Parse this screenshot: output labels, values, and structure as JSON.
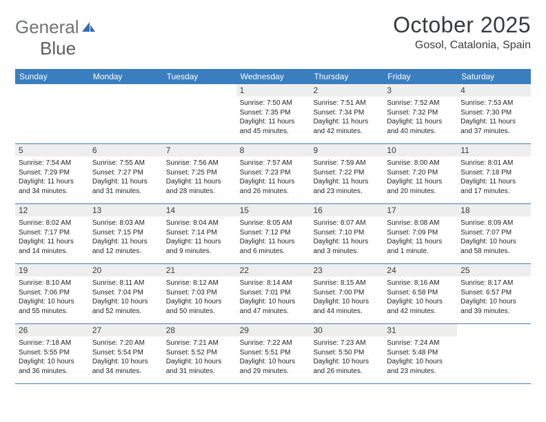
{
  "logo": {
    "text_general": "General",
    "text_blue": "Blue"
  },
  "title": "October 2025",
  "location": "Gosol, Catalonia, Spain",
  "colors": {
    "header_bg": "#3a7ebf",
    "header_fg": "#ffffff",
    "logo_grey": "#6f7274",
    "daynum_bg": "#eeeeee",
    "text": "#222222",
    "row_border": "#3a7ebf"
  },
  "day_names": [
    "Sunday",
    "Monday",
    "Tuesday",
    "Wednesday",
    "Thursday",
    "Friday",
    "Saturday"
  ],
  "weeks": [
    [
      {
        "n": "",
        "s": "",
        "t": "",
        "d": ""
      },
      {
        "n": "",
        "s": "",
        "t": "",
        "d": ""
      },
      {
        "n": "",
        "s": "",
        "t": "",
        "d": ""
      },
      {
        "n": "1",
        "s": "Sunrise: 7:50 AM",
        "t": "Sunset: 7:35 PM",
        "d": "Daylight: 11 hours and 45 minutes."
      },
      {
        "n": "2",
        "s": "Sunrise: 7:51 AM",
        "t": "Sunset: 7:34 PM",
        "d": "Daylight: 11 hours and 42 minutes."
      },
      {
        "n": "3",
        "s": "Sunrise: 7:52 AM",
        "t": "Sunset: 7:32 PM",
        "d": "Daylight: 11 hours and 40 minutes."
      },
      {
        "n": "4",
        "s": "Sunrise: 7:53 AM",
        "t": "Sunset: 7:30 PM",
        "d": "Daylight: 11 hours and 37 minutes."
      }
    ],
    [
      {
        "n": "5",
        "s": "Sunrise: 7:54 AM",
        "t": "Sunset: 7:29 PM",
        "d": "Daylight: 11 hours and 34 minutes."
      },
      {
        "n": "6",
        "s": "Sunrise: 7:55 AM",
        "t": "Sunset: 7:27 PM",
        "d": "Daylight: 11 hours and 31 minutes."
      },
      {
        "n": "7",
        "s": "Sunrise: 7:56 AM",
        "t": "Sunset: 7:25 PM",
        "d": "Daylight: 11 hours and 28 minutes."
      },
      {
        "n": "8",
        "s": "Sunrise: 7:57 AM",
        "t": "Sunset: 7:23 PM",
        "d": "Daylight: 11 hours and 26 minutes."
      },
      {
        "n": "9",
        "s": "Sunrise: 7:59 AM",
        "t": "Sunset: 7:22 PM",
        "d": "Daylight: 11 hours and 23 minutes."
      },
      {
        "n": "10",
        "s": "Sunrise: 8:00 AM",
        "t": "Sunset: 7:20 PM",
        "d": "Daylight: 11 hours and 20 minutes."
      },
      {
        "n": "11",
        "s": "Sunrise: 8:01 AM",
        "t": "Sunset: 7:18 PM",
        "d": "Daylight: 11 hours and 17 minutes."
      }
    ],
    [
      {
        "n": "12",
        "s": "Sunrise: 8:02 AM",
        "t": "Sunset: 7:17 PM",
        "d": "Daylight: 11 hours and 14 minutes."
      },
      {
        "n": "13",
        "s": "Sunrise: 8:03 AM",
        "t": "Sunset: 7:15 PM",
        "d": "Daylight: 11 hours and 12 minutes."
      },
      {
        "n": "14",
        "s": "Sunrise: 8:04 AM",
        "t": "Sunset: 7:14 PM",
        "d": "Daylight: 11 hours and 9 minutes."
      },
      {
        "n": "15",
        "s": "Sunrise: 8:05 AM",
        "t": "Sunset: 7:12 PM",
        "d": "Daylight: 11 hours and 6 minutes."
      },
      {
        "n": "16",
        "s": "Sunrise: 8:07 AM",
        "t": "Sunset: 7:10 PM",
        "d": "Daylight: 11 hours and 3 minutes."
      },
      {
        "n": "17",
        "s": "Sunrise: 8:08 AM",
        "t": "Sunset: 7:09 PM",
        "d": "Daylight: 11 hours and 1 minute."
      },
      {
        "n": "18",
        "s": "Sunrise: 8:09 AM",
        "t": "Sunset: 7:07 PM",
        "d": "Daylight: 10 hours and 58 minutes."
      }
    ],
    [
      {
        "n": "19",
        "s": "Sunrise: 8:10 AM",
        "t": "Sunset: 7:06 PM",
        "d": "Daylight: 10 hours and 55 minutes."
      },
      {
        "n": "20",
        "s": "Sunrise: 8:11 AM",
        "t": "Sunset: 7:04 PM",
        "d": "Daylight: 10 hours and 52 minutes."
      },
      {
        "n": "21",
        "s": "Sunrise: 8:12 AM",
        "t": "Sunset: 7:03 PM",
        "d": "Daylight: 10 hours and 50 minutes."
      },
      {
        "n": "22",
        "s": "Sunrise: 8:14 AM",
        "t": "Sunset: 7:01 PM",
        "d": "Daylight: 10 hours and 47 minutes."
      },
      {
        "n": "23",
        "s": "Sunrise: 8:15 AM",
        "t": "Sunset: 7:00 PM",
        "d": "Daylight: 10 hours and 44 minutes."
      },
      {
        "n": "24",
        "s": "Sunrise: 8:16 AM",
        "t": "Sunset: 6:58 PM",
        "d": "Daylight: 10 hours and 42 minutes."
      },
      {
        "n": "25",
        "s": "Sunrise: 8:17 AM",
        "t": "Sunset: 6:57 PM",
        "d": "Daylight: 10 hours and 39 minutes."
      }
    ],
    [
      {
        "n": "26",
        "s": "Sunrise: 7:18 AM",
        "t": "Sunset: 5:55 PM",
        "d": "Daylight: 10 hours and 36 minutes."
      },
      {
        "n": "27",
        "s": "Sunrise: 7:20 AM",
        "t": "Sunset: 5:54 PM",
        "d": "Daylight: 10 hours and 34 minutes."
      },
      {
        "n": "28",
        "s": "Sunrise: 7:21 AM",
        "t": "Sunset: 5:52 PM",
        "d": "Daylight: 10 hours and 31 minutes."
      },
      {
        "n": "29",
        "s": "Sunrise: 7:22 AM",
        "t": "Sunset: 5:51 PM",
        "d": "Daylight: 10 hours and 29 minutes."
      },
      {
        "n": "30",
        "s": "Sunrise: 7:23 AM",
        "t": "Sunset: 5:50 PM",
        "d": "Daylight: 10 hours and 26 minutes."
      },
      {
        "n": "31",
        "s": "Sunrise: 7:24 AM",
        "t": "Sunset: 5:48 PM",
        "d": "Daylight: 10 hours and 23 minutes."
      },
      {
        "n": "",
        "s": "",
        "t": "",
        "d": ""
      }
    ]
  ]
}
